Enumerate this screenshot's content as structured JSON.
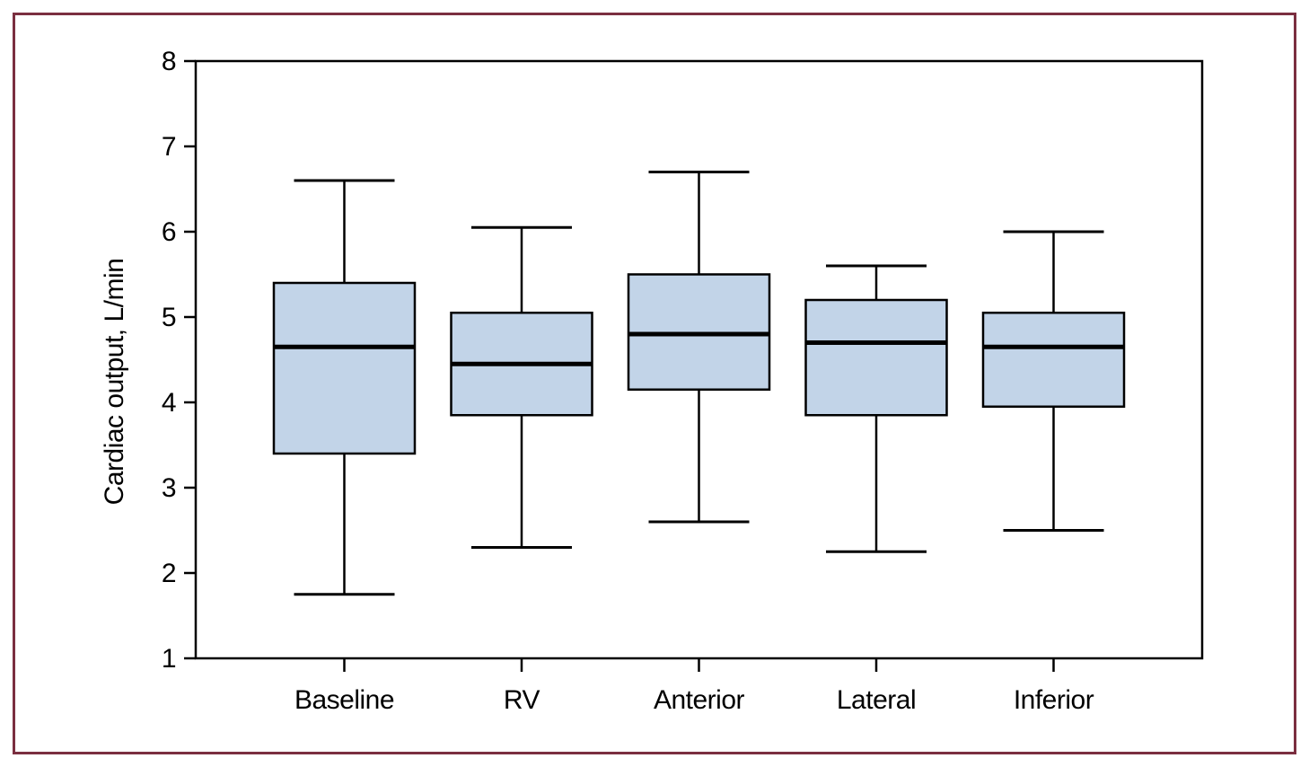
{
  "figure": {
    "border_color": "#7b2f40",
    "background_color": "#ffffff"
  },
  "chart_data": {
    "type": "boxplot",
    "title": "",
    "xlabel": "",
    "ylabel": "Cardiac output, L/min",
    "ylim": [
      1,
      8
    ],
    "yticks": [
      1,
      2,
      3,
      4,
      5,
      6,
      7,
      8
    ],
    "grid": false,
    "legend": null,
    "categories": [
      "Baseline",
      "RV",
      "Anterior",
      "Lateral",
      "Inferior"
    ],
    "series": [
      {
        "category": "Baseline",
        "whisker_low": 1.75,
        "q1": 3.4,
        "median": 4.65,
        "q3": 5.4,
        "whisker_high": 6.6
      },
      {
        "category": "RV",
        "whisker_low": 2.3,
        "q1": 3.85,
        "median": 4.45,
        "q3": 5.05,
        "whisker_high": 6.05
      },
      {
        "category": "Anterior",
        "whisker_low": 2.6,
        "q1": 4.15,
        "median": 4.8,
        "q3": 5.5,
        "whisker_high": 6.7
      },
      {
        "category": "Lateral",
        "whisker_low": 2.25,
        "q1": 3.85,
        "median": 4.7,
        "q3": 5.2,
        "whisker_high": 5.6
      },
      {
        "category": "Inferior",
        "whisker_low": 2.5,
        "q1": 3.95,
        "median": 4.65,
        "q3": 5.05,
        "whisker_high": 6.0
      }
    ],
    "colors": {
      "box_fill": "#c2d4e8",
      "box_stroke": "#000000",
      "median_stroke": "#000000",
      "axis_stroke": "#000000"
    }
  }
}
